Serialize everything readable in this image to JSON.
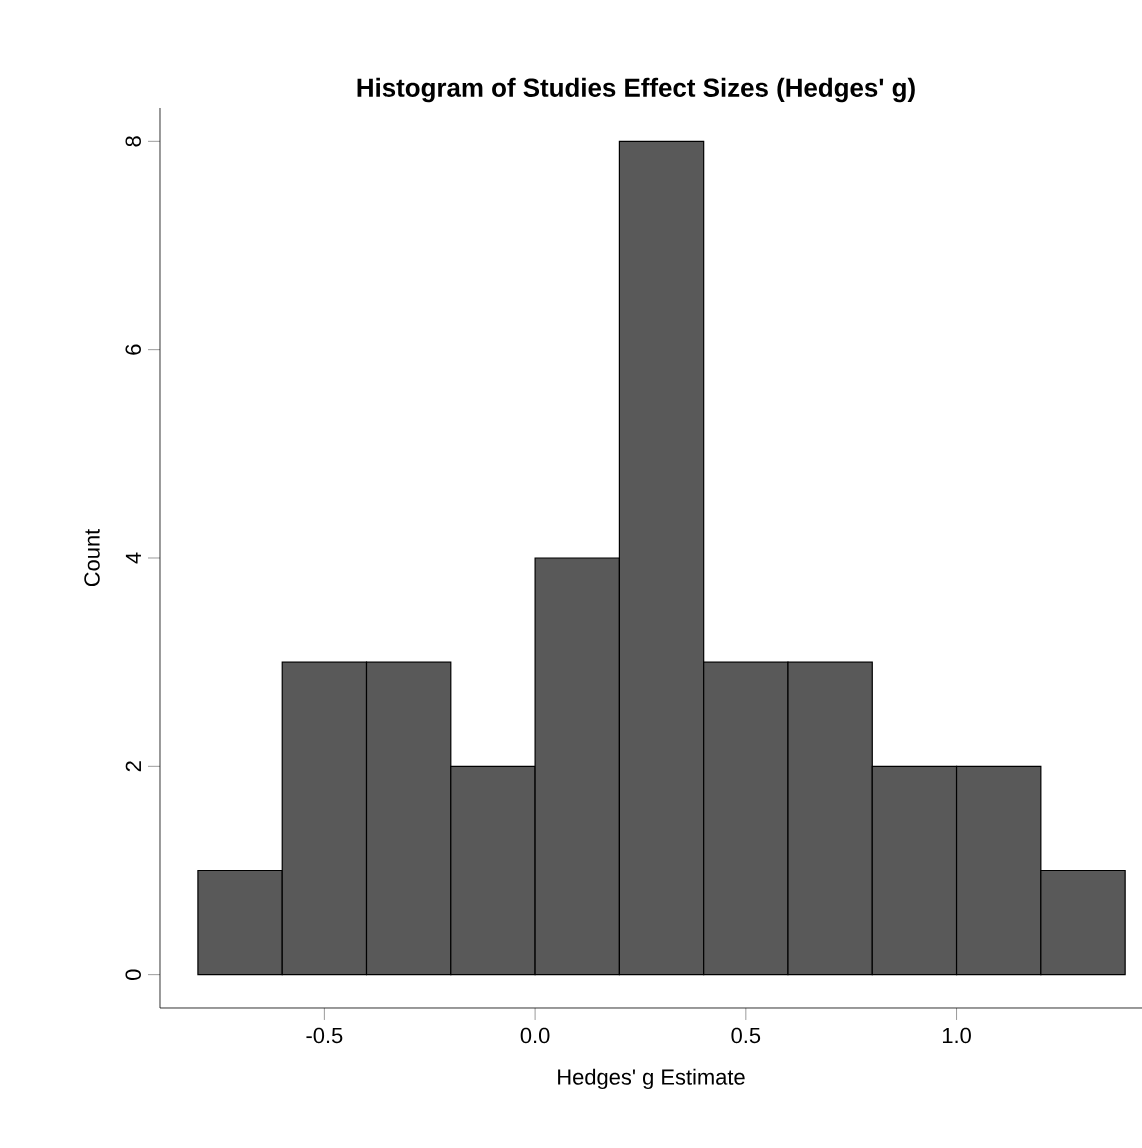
{
  "chart_data": {
    "type": "histogram",
    "title": "Histogram of Studies Effect Sizes (Hedges' g)",
    "xlabel": "Hedges' g Estimate",
    "ylabel": "Count",
    "bins": [
      -0.8,
      -0.6,
      -0.4,
      -0.2,
      0.0,
      0.2,
      0.4,
      0.6,
      0.8,
      1.0,
      1.2,
      1.4
    ],
    "values": [
      1,
      3,
      3,
      2,
      4,
      8,
      3,
      3,
      2,
      2,
      1
    ],
    "color": "#595959",
    "xlim": [
      -0.89,
      1.44
    ],
    "ylim": [
      -0.32,
      8.32
    ],
    "xticks": [
      -0.5,
      {
        "value": 0.0,
        "label": "0.0"
      },
      0.5,
      {
        "value": 1.0,
        "label": "1.0"
      }
    ],
    "yticks": [
      0,
      2,
      4,
      6,
      8
    ]
  }
}
